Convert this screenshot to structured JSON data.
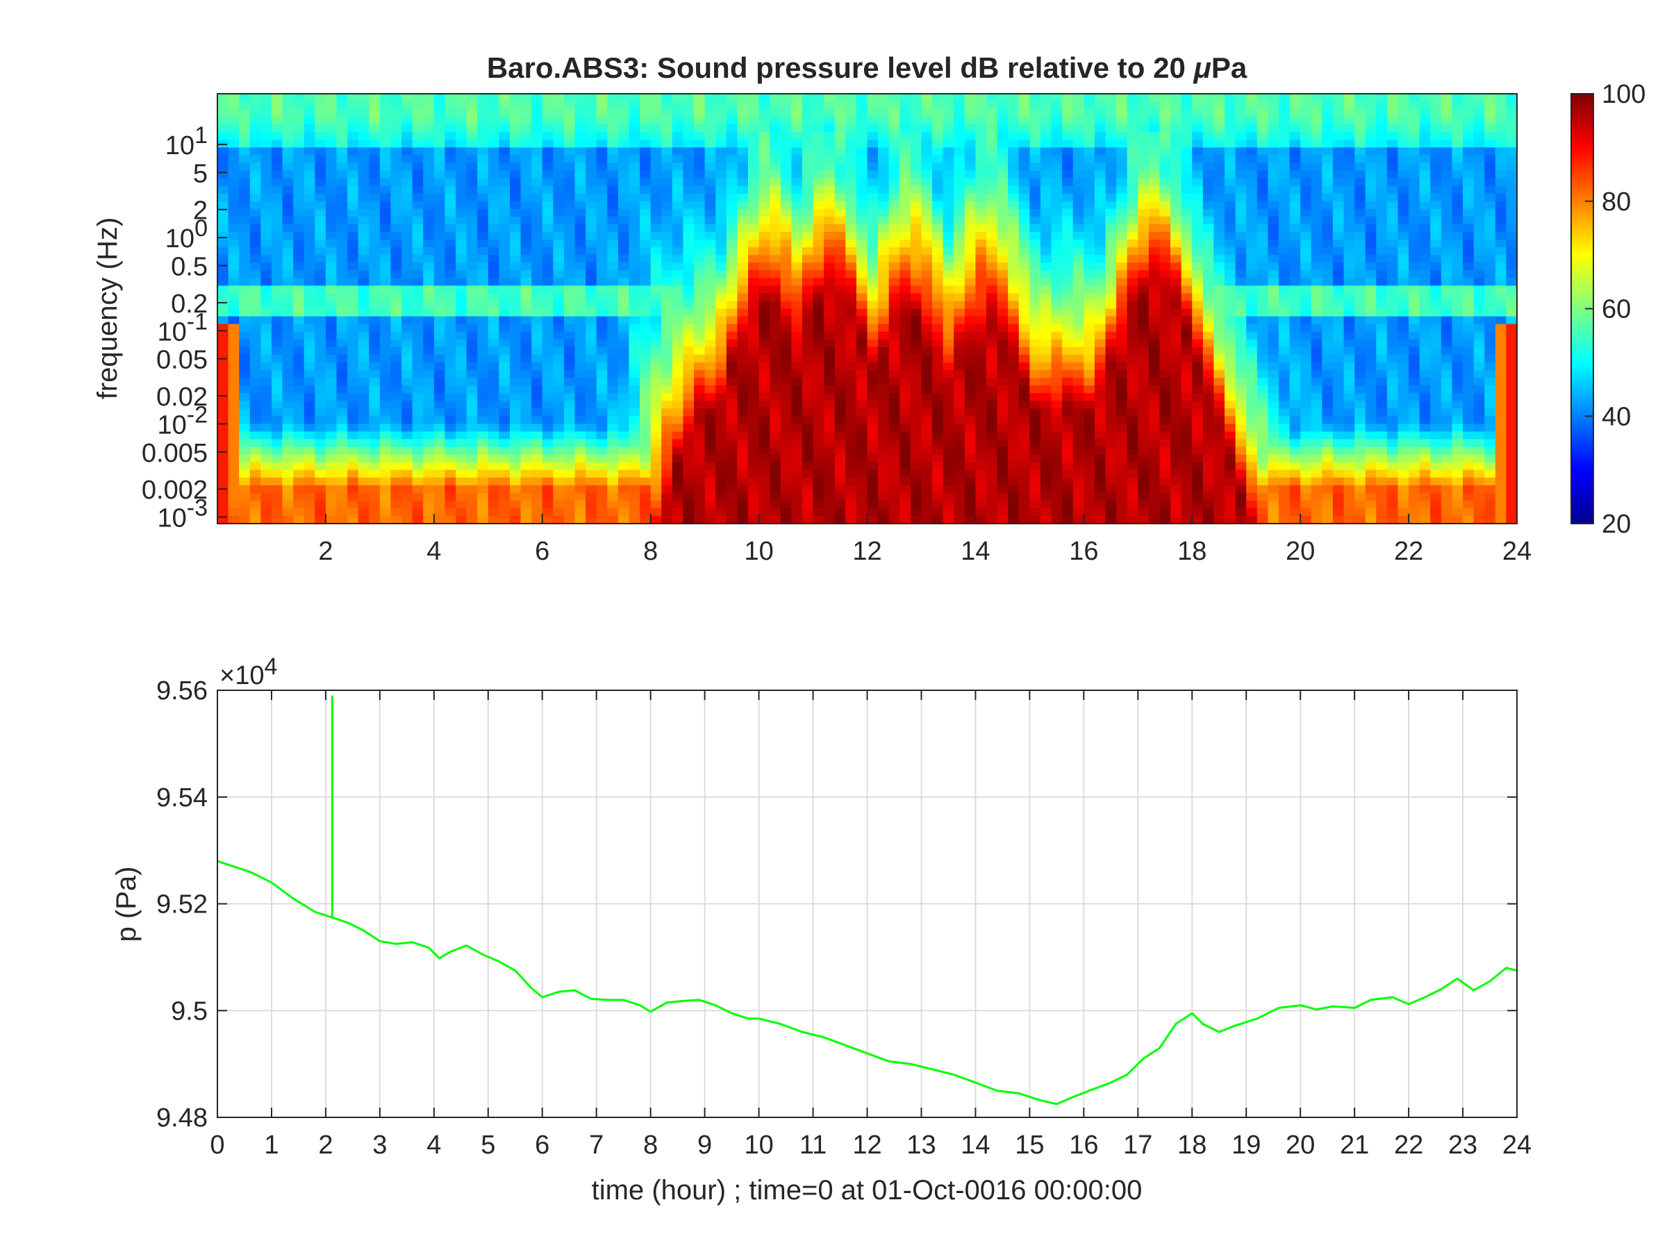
{
  "chart_data": [
    {
      "type": "heatmap",
      "title": "Baro.ABS3: Sound pressure level dB relative to 20 μPa",
      "title_prefix": "Baro.ABS3: Sound pressure level dB relative to 20 ",
      "title_mu": "μ",
      "title_suffix": "Pa",
      "xlabel": "",
      "ylabel": "frequency (Hz)",
      "xlim": [
        0,
        24
      ],
      "ylim": [
        0.00085,
        35
      ],
      "yscale": "log",
      "x_ticks": [
        2,
        4,
        6,
        8,
        10,
        12,
        14,
        16,
        18,
        20,
        22,
        24
      ],
      "x_tick_labels": [
        "2",
        "4",
        "6",
        "8",
        "10",
        "12",
        "14",
        "16",
        "18",
        "20",
        "22",
        "24"
      ],
      "y_ticks": [
        0.001,
        0.002,
        0.005,
        0.01,
        0.02,
        0.05,
        0.1,
        0.2,
        0.5,
        1,
        2,
        5,
        10
      ],
      "y_tick_labels": [
        {
          "base": "10",
          "exp": "-3"
        },
        {
          "base": "0.002",
          "exp": ""
        },
        {
          "base": "0.005",
          "exp": ""
        },
        {
          "base": "10",
          "exp": "-2"
        },
        {
          "base": "0.02",
          "exp": ""
        },
        {
          "base": "0.05",
          "exp": ""
        },
        {
          "base": "10",
          "exp": "-1"
        },
        {
          "base": "0.2",
          "exp": ""
        },
        {
          "base": "0.5",
          "exp": ""
        },
        {
          "base": "10",
          "exp": "0"
        },
        {
          "base": "2",
          "exp": ""
        },
        {
          "base": "5",
          "exp": ""
        },
        {
          "base": "10",
          "exp": "1"
        }
      ],
      "colormap": "jet",
      "colorbar": {
        "min": 20,
        "max": 100,
        "ticks": [
          20,
          40,
          60,
          80,
          100
        ],
        "tick_labels": [
          "20",
          "40",
          "60",
          "80",
          "100"
        ]
      },
      "activity_peaks": [
        {
          "x": 10.2,
          "level_db": 88
        },
        {
          "x": 11.3,
          "level_db": 92
        },
        {
          "x": 12.8,
          "level_db": 85
        },
        {
          "x": 14.2,
          "level_db": 82
        },
        {
          "x": 17.3,
          "level_db": 95
        }
      ],
      "grid": false
    },
    {
      "type": "line",
      "title": "",
      "xlabel": "time (hour) ; time=0 at 01-Oct-0016 00:00:00",
      "ylabel": "p (Pa)",
      "xlim": [
        0,
        24
      ],
      "ylim": [
        94800,
        95600
      ],
      "y_scale_factor_label": {
        "base": "×10",
        "exp": "4"
      },
      "x_ticks": [
        0,
        1,
        2,
        3,
        4,
        5,
        6,
        7,
        8,
        9,
        10,
        11,
        12,
        13,
        14,
        15,
        16,
        17,
        18,
        19,
        20,
        21,
        22,
        23,
        24
      ],
      "x_tick_labels": [
        "0",
        "1",
        "2",
        "3",
        "4",
        "5",
        "6",
        "7",
        "8",
        "9",
        "10",
        "11",
        "12",
        "13",
        "14",
        "15",
        "16",
        "17",
        "18",
        "19",
        "20",
        "21",
        "22",
        "23",
        "24"
      ],
      "y_ticks": [
        94800,
        95000,
        95200,
        95400,
        95600
      ],
      "y_tick_labels": [
        "9.48",
        "9.5",
        "9.52",
        "9.54",
        "9.56"
      ],
      "line_color": "#00ff00",
      "grid": true,
      "spike": {
        "x": 2.12,
        "y_top": 95590,
        "y_base": 95175
      },
      "series": [
        {
          "x": [
            0,
            0.3,
            0.6,
            1.0,
            1.4,
            1.8,
            2.1,
            2.4,
            2.7,
            3.0,
            3.3,
            3.6,
            3.9,
            4.1,
            4.3,
            4.6,
            4.9,
            5.2,
            5.5,
            5.8,
            6.0,
            6.3,
            6.6,
            6.9,
            7.2,
            7.5,
            7.8,
            8.0,
            8.3,
            8.6,
            8.9,
            9.2,
            9.5,
            9.8,
            10.0,
            10.4,
            10.8,
            11.2,
            11.6,
            12.0,
            12.4,
            12.8,
            13.2,
            13.6,
            14.0,
            14.4,
            14.8,
            15.2,
            15.5,
            15.8,
            16.1,
            16.5,
            16.8,
            17.1,
            17.4,
            17.7,
            18.0,
            18.2,
            18.5,
            18.8,
            19.2,
            19.6,
            20.0,
            20.3,
            20.6,
            21.0,
            21.3,
            21.7,
            22.0,
            22.3,
            22.6,
            22.9,
            23.2,
            23.5,
            23.8,
            24.0
          ],
          "y": [
            95280,
            95270,
            95260,
            95240,
            95210,
            95185,
            95175,
            95165,
            95150,
            95130,
            95125,
            95128,
            95118,
            95098,
            95110,
            95122,
            95105,
            95092,
            95075,
            95042,
            95025,
            95035,
            95038,
            95022,
            95020,
            95020,
            95010,
            94998,
            95015,
            95018,
            95020,
            95010,
            94995,
            94985,
            94985,
            94975,
            94960,
            94950,
            94935,
            94920,
            94905,
            94900,
            94890,
            94880,
            94865,
            94850,
            94845,
            94832,
            94825,
            94838,
            94850,
            94865,
            94880,
            94910,
            94930,
            94975,
            94995,
            94975,
            94960,
            94972,
            94985,
            95005,
            95010,
            95002,
            95008,
            95005,
            95020,
            95025,
            95012,
            95025,
            95040,
            95060,
            95038,
            95055,
            95080,
            95075
          ]
        }
      ]
    }
  ]
}
